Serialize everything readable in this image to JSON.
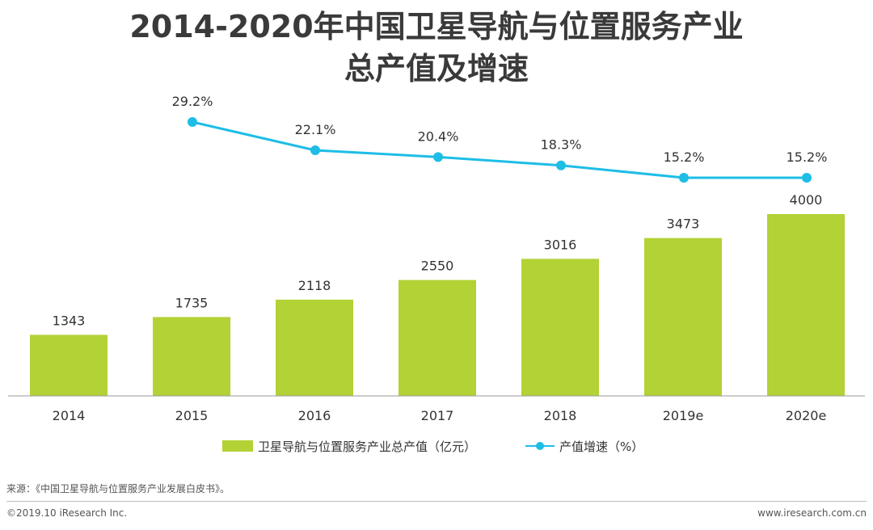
{
  "title_line1": "2014-2020年中国卫星导航与位置服务产业",
  "title_line2": "总产值及增速",
  "colors": {
    "bar": "#b2d235",
    "line": "#1ebde6"
  },
  "chart_data": {
    "type": "bar",
    "categories": [
      "2014",
      "2015",
      "2016",
      "2017",
      "2018",
      "2019e",
      "2020e"
    ],
    "series": [
      {
        "name": "卫星导航与位置服务产业总产值（亿元）",
        "type": "bar",
        "values": [
          1343,
          1735,
          2118,
          2550,
          3016,
          3473,
          4000
        ]
      },
      {
        "name": "产值增速（%）",
        "type": "line",
        "values": [
          null,
          29.2,
          22.1,
          20.4,
          18.3,
          15.2,
          15.2
        ],
        "labels": [
          "",
          "29.2%",
          "22.1%",
          "20.4%",
          "18.3%",
          "15.2%",
          "15.2%"
        ]
      }
    ],
    "bar_ylim": [
      0,
      4000
    ],
    "line_ylim": [
      15.2,
      29.2
    ],
    "legend_position": "bottom"
  },
  "legend": {
    "bar_label": "卫星导航与位置服务产业总产值（亿元）",
    "line_label": "产值增速（%）"
  },
  "source": "来源：《中国卫星导航与位置服务产业发展白皮书》。",
  "copyright": "©2019.10 iResearch Inc.",
  "website": "www.iresearch.com.cn"
}
